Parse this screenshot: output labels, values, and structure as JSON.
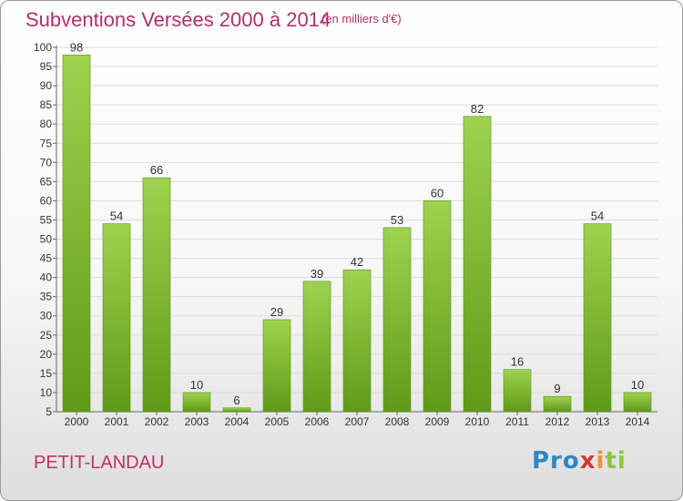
{
  "header": {
    "title": "Subventions Versées 2000 à 2014",
    "unit": "(en milliers d'€)"
  },
  "commune": "PETIT-LANDAU",
  "logo": {
    "text": "Proxiti",
    "colors": [
      "#2f86c4",
      "#e8972a",
      "#d23a3a",
      "#8cc63f"
    ]
  },
  "chart_data": {
    "type": "bar",
    "title": "Subventions Versées 2000 à 2014",
    "subtitle": "(en milliers d'€)",
    "xlabel": "",
    "ylabel": "",
    "categories": [
      "2000",
      "2001",
      "2002",
      "2003",
      "2004",
      "2005",
      "2006",
      "2007",
      "2008",
      "2009",
      "2010",
      "2011",
      "2012",
      "2013",
      "2014"
    ],
    "values": [
      98,
      54,
      66,
      10,
      6,
      29,
      39,
      42,
      53,
      60,
      82,
      16,
      9,
      54,
      10
    ],
    "ylim": [
      5,
      100
    ],
    "yticks": [
      5,
      10,
      15,
      20,
      25,
      30,
      35,
      40,
      45,
      50,
      55,
      60,
      65,
      70,
      75,
      80,
      85,
      90,
      95,
      100
    ],
    "grid": true,
    "bar_color_top": "#9ed24f",
    "bar_color_bottom": "#5f9a17"
  }
}
